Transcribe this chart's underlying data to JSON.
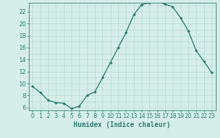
{
  "x": [
    0,
    1,
    2,
    3,
    4,
    5,
    6,
    7,
    8,
    9,
    10,
    11,
    12,
    13,
    14,
    15,
    16,
    17,
    18,
    19,
    20,
    21,
    22,
    23
  ],
  "y": [
    9.5,
    8.5,
    7.2,
    6.8,
    6.7,
    5.8,
    6.2,
    8.0,
    8.6,
    11.0,
    13.5,
    16.0,
    18.5,
    21.5,
    23.2,
    23.5,
    23.7,
    23.3,
    22.8,
    21.0,
    18.8,
    15.5,
    13.7,
    11.8
  ],
  "line_color": "#2d7d6d",
  "bg_color": "#d5eeea",
  "grid_color": "#b8d8d3",
  "xlabel": "Humidex (Indice chaleur)",
  "xlim": [
    -0.5,
    23.5
  ],
  "ylim": [
    5.5,
    23.5
  ],
  "yticks": [
    6,
    8,
    10,
    12,
    14,
    16,
    18,
    20,
    22
  ],
  "xticks": [
    0,
    1,
    2,
    3,
    4,
    5,
    6,
    7,
    8,
    9,
    10,
    11,
    12,
    13,
    14,
    15,
    16,
    17,
    18,
    19,
    20,
    21,
    22,
    23
  ],
  "marker": "D",
  "marker_size": 1.8,
  "line_width": 1.0,
  "xlabel_fontsize": 7,
  "tick_fontsize": 6
}
